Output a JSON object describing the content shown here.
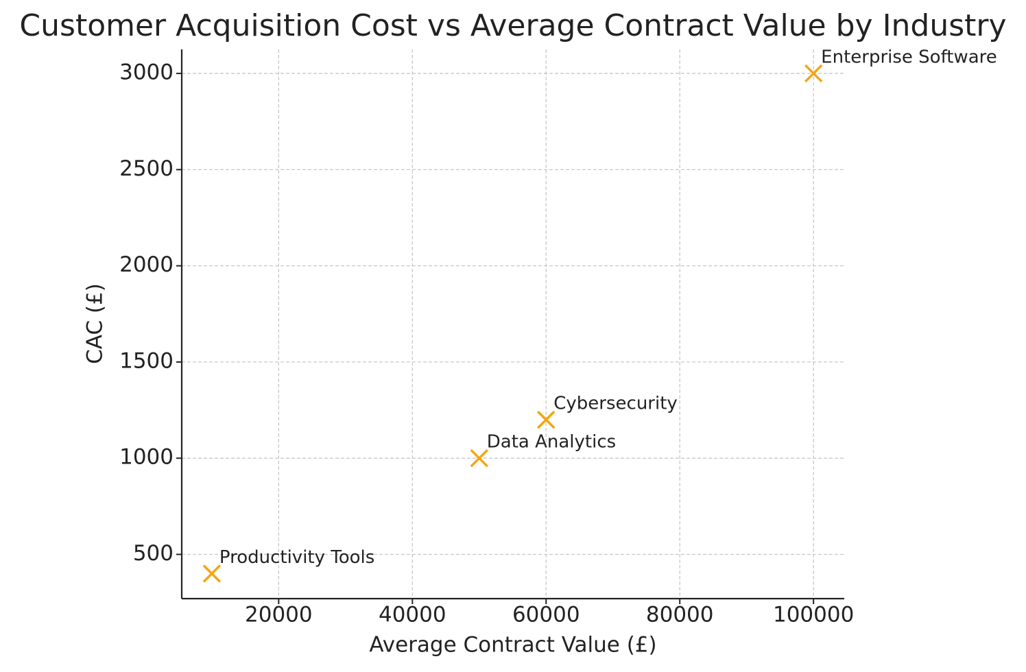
{
  "chart_data": {
    "type": "scatter",
    "title": "Customer Acquisition Cost vs Average Contract Value by Industry",
    "x_label": "Average Contract Value (£)",
    "y_label": "CAC (£)",
    "labels": [
      "Productivity Tools",
      "Data Analytics",
      "Cybersecurity",
      "Enterprise Software"
    ],
    "x": [
      10000,
      50000,
      60000,
      100000
    ],
    "values": [
      400,
      1000,
      1200,
      3000
    ],
    "color": "#f5a511",
    "marker": "x",
    "xlim": [
      5500,
      104600
    ],
    "ylim": [
      270,
      3125
    ],
    "xticks": [
      20000,
      40000,
      60000,
      80000,
      100000
    ],
    "yticks": [
      500,
      1000,
      1500,
      2000,
      2500,
      3000
    ],
    "grid": true
  }
}
